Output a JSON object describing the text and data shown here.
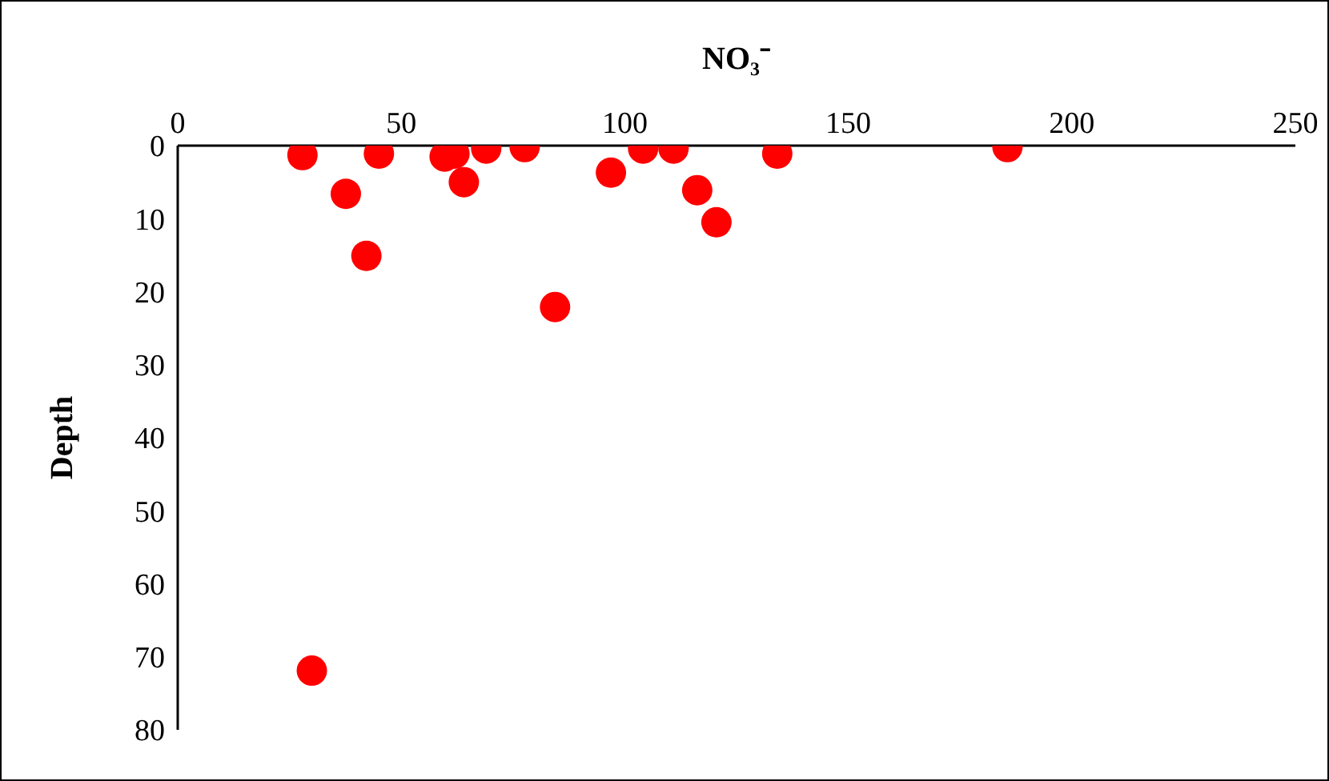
{
  "chart_data": {
    "type": "scatter",
    "xlabel": "NO₃⁻",
    "ylabel": "Depth",
    "xlim": [
      0,
      250
    ],
    "xticks": [
      0,
      50,
      100,
      150,
      200,
      250
    ],
    "ylim": [
      80,
      0
    ],
    "yticks": [
      0,
      10,
      20,
      30,
      40,
      50,
      60,
      70,
      80
    ],
    "grid": false,
    "legend": false,
    "marker": "circle",
    "x": [
      27.9,
      37.6,
      42.2,
      45,
      59.7,
      61.9,
      64,
      69,
      77.6,
      84.4,
      96.9,
      104.1,
      110.9,
      116.2,
      120.5,
      134.1,
      185.6,
      30
    ],
    "series": [
      {
        "color": "#ff0000",
        "values": [
          1.3,
          6.6,
          15.1,
          1.1,
          1.5,
          1.1,
          5.0,
          0.4,
          0.2,
          22.1,
          3.7,
          0.4,
          0.4,
          6.1,
          10.5,
          1.1,
          0.2,
          71.9
        ]
      }
    ]
  }
}
